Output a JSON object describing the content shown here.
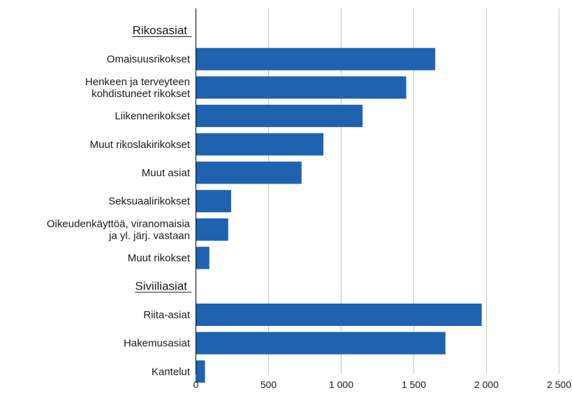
{
  "chart_data": {
    "type": "bar",
    "orientation": "horizontal",
    "groups": [
      {
        "label": "Rikosasiat",
        "items": [
          {
            "label": [
              "Omaisuusrikokset"
            ],
            "value": 1650
          },
          {
            "label": [
              "Henkeen ja terveyteen",
              "kohdistuneet rikokset"
            ],
            "value": 1450
          },
          {
            "label": [
              "Liikennerikokset"
            ],
            "value": 1150
          },
          {
            "label": [
              "Muut rikoslakirikokset"
            ],
            "value": 880
          },
          {
            "label": [
              "Muut asiat"
            ],
            "value": 730
          },
          {
            "label": [
              "Seksuaalirikokset"
            ],
            "value": 245
          },
          {
            "label": [
              "Oikeudenkäyttöä, viranomaisia",
              "ja yl. järj. vastaan"
            ],
            "value": 225
          },
          {
            "label": [
              "Muut rikokset"
            ],
            "value": 95
          }
        ]
      },
      {
        "label": "Siviiliasiat",
        "items": [
          {
            "label": [
              "Riita-asiat"
            ],
            "value": 1970
          },
          {
            "label": [
              "Hakemusasiat"
            ],
            "value": 1720
          },
          {
            "label": [
              "Kantelut"
            ],
            "value": 65
          }
        ]
      }
    ],
    "xlim": [
      0,
      2500
    ],
    "xticks": [
      0,
      500,
      1000,
      1500,
      2000,
      2500
    ],
    "xtick_labels": [
      "0",
      "500",
      "1 000",
      "1 500",
      "2 000",
      "2 500"
    ],
    "grid": true,
    "bar_color": "#1f63b0",
    "grid_color": "#c6c6c6",
    "title": "",
    "xlabel": "",
    "ylabel": ""
  }
}
